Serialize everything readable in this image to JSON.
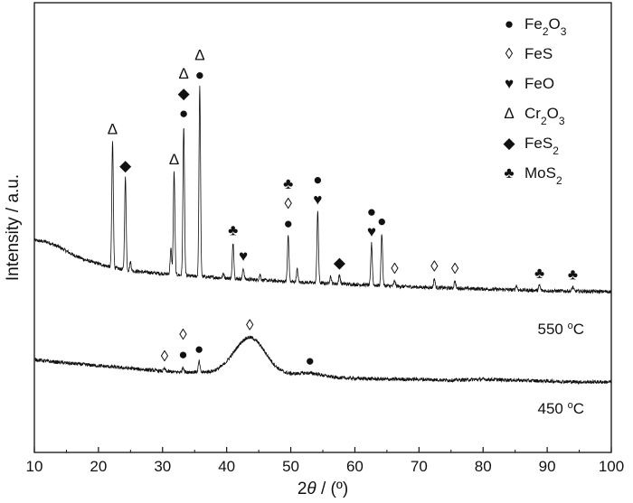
{
  "chart_data": {
    "type": "line",
    "xlabel": "2θ / (º)",
    "ylabel": "Intensity / a.u.",
    "xlim": [
      10,
      100
    ],
    "xticks": [
      10,
      20,
      30,
      40,
      50,
      60,
      70,
      80,
      90,
      100
    ],
    "y_ticks_shown": false,
    "grid": false,
    "legend_position": "top-right",
    "legend": [
      {
        "symbol": "●",
        "label": "Fe",
        "sub1": "2",
        "mid": "O",
        "sub2": "3"
      },
      {
        "symbol": "◊",
        "label": "FeS",
        "sub1": "",
        "mid": "",
        "sub2": ""
      },
      {
        "symbol": "♥",
        "label": "FeO",
        "sub1": "",
        "mid": "",
        "sub2": ""
      },
      {
        "symbol": "Δ",
        "label": "Cr",
        "sub1": "2",
        "mid": "O",
        "sub2": "3"
      },
      {
        "symbol": "◆",
        "label": "FeS",
        "sub1": "2",
        "mid": "",
        "sub2": ""
      },
      {
        "symbol": "♣",
        "label": "MoS",
        "sub1": "2",
        "mid": "",
        "sub2": ""
      }
    ],
    "series": [
      {
        "label_main": "550 ",
        "label_sup": "o",
        "label_unit": "C",
        "background": [
          [
            10,
            64
          ],
          [
            12,
            62
          ],
          [
            14,
            56
          ],
          [
            16,
            48
          ],
          [
            18,
            42
          ],
          [
            20,
            38
          ],
          [
            22,
            34
          ],
          [
            25,
            30
          ],
          [
            30,
            27
          ],
          [
            35,
            24
          ],
          [
            40,
            22
          ],
          [
            45,
            20
          ],
          [
            50,
            18
          ],
          [
            60,
            15
          ],
          [
            70,
            12
          ],
          [
            80,
            10
          ],
          [
            90,
            8
          ],
          [
            100,
            7
          ]
        ],
        "peaks": [
          {
            "x": 22.2,
            "h": 140
          },
          {
            "x": 24.2,
            "h": 102
          },
          {
            "x": 25.0,
            "h": 10
          },
          {
            "x": 31.3,
            "h": 28
          },
          {
            "x": 31.8,
            "h": 114
          },
          {
            "x": 33.3,
            "h": 166
          },
          {
            "x": 35.8,
            "h": 210
          },
          {
            "x": 39.5,
            "h": 5
          },
          {
            "x": 41.0,
            "h": 40
          },
          {
            "x": 42.6,
            "h": 12
          },
          {
            "x": 45.2,
            "h": 6
          },
          {
            "x": 49.6,
            "h": 51
          },
          {
            "x": 51.0,
            "h": 14
          },
          {
            "x": 54.2,
            "h": 79
          },
          {
            "x": 56.2,
            "h": 8
          },
          {
            "x": 57.6,
            "h": 10
          },
          {
            "x": 62.6,
            "h": 46
          },
          {
            "x": 64.2,
            "h": 58
          },
          {
            "x": 66.2,
            "h": 6
          },
          {
            "x": 72.4,
            "h": 10
          },
          {
            "x": 75.6,
            "h": 8
          },
          {
            "x": 85.2,
            "h": 5
          },
          {
            "x": 88.8,
            "h": 6
          },
          {
            "x": 94.0,
            "h": 5
          }
        ],
        "broad_peaks": []
      },
      {
        "label_main": "450 ",
        "label_sup": "o",
        "label_unit": "C",
        "background": [
          [
            10,
            22
          ],
          [
            12,
            20
          ],
          [
            15,
            18
          ],
          [
            20,
            15
          ],
          [
            25,
            12
          ],
          [
            30,
            9
          ],
          [
            32,
            8
          ],
          [
            35,
            8
          ],
          [
            38,
            7
          ],
          [
            40,
            7
          ],
          [
            45,
            6
          ],
          [
            50,
            4
          ],
          [
            55,
            2
          ],
          [
            60,
            1
          ],
          [
            65,
            0
          ],
          [
            70,
            0
          ],
          [
            75,
            -1
          ],
          [
            80,
            0
          ],
          [
            85,
            -1
          ],
          [
            90,
            -2
          ],
          [
            95,
            -3
          ],
          [
            100,
            -3
          ]
        ],
        "peaks": [
          {
            "x": 33.2,
            "h": 6
          },
          {
            "x": 35.7,
            "h": 12
          },
          {
            "x": 30.3,
            "h": 3
          }
        ],
        "broad_peaks": [
          {
            "x": 43.6,
            "h": 40,
            "w": 2.4
          },
          {
            "x": 53.0,
            "h": 4,
            "w": 2.0
          }
        ]
      }
    ],
    "annotations": [
      {
        "x": 22.2,
        "y": 140,
        "series": 0,
        "symbols": [
          "Δ"
        ]
      },
      {
        "x": 24.2,
        "y": 102,
        "series": 0,
        "symbols": [
          "◆"
        ]
      },
      {
        "x": 31.8,
        "y": 114,
        "series": 0,
        "symbols": [
          "Δ"
        ]
      },
      {
        "x": 33.3,
        "y": 166,
        "series": 0,
        "symbols": [
          "●",
          "◆",
          "Δ"
        ]
      },
      {
        "x": 35.8,
        "y": 210,
        "series": 0,
        "symbols": [
          "●",
          "Δ"
        ]
      },
      {
        "x": 41.0,
        "y": 40,
        "series": 0,
        "symbols": [
          "♣"
        ]
      },
      {
        "x": 42.6,
        "y": 12,
        "series": 0,
        "symbols": [
          "♥"
        ]
      },
      {
        "x": 49.6,
        "y": 51,
        "series": 0,
        "symbols": [
          "●",
          "◊",
          "♣"
        ]
      },
      {
        "x": 54.2,
        "y": 79,
        "series": 0,
        "symbols": [
          "♥",
          "●"
        ]
      },
      {
        "x": 57.6,
        "y": 10,
        "series": 0,
        "symbols": [
          "◆"
        ]
      },
      {
        "x": 62.6,
        "y": 46,
        "series": 0,
        "symbols": [
          "♥",
          "●"
        ]
      },
      {
        "x": 64.2,
        "y": 58,
        "series": 0,
        "symbols": [
          "●"
        ]
      },
      {
        "x": 66.2,
        "y": 6,
        "series": 0,
        "symbols": [
          "◊"
        ]
      },
      {
        "x": 72.4,
        "y": 10,
        "series": 0,
        "symbols": [
          "◊"
        ]
      },
      {
        "x": 75.6,
        "y": 8,
        "series": 0,
        "symbols": [
          "◊"
        ]
      },
      {
        "x": 88.8,
        "y": 6,
        "series": 0,
        "symbols": [
          "♣"
        ]
      },
      {
        "x": 94.0,
        "y": 5,
        "series": 0,
        "symbols": [
          "♣"
        ]
      },
      {
        "x": 30.3,
        "y": 3,
        "series": 1,
        "symbols": [
          "◊"
        ]
      },
      {
        "x": 33.2,
        "y": 6,
        "series": 1,
        "symbols": [
          "●",
          "◊"
        ]
      },
      {
        "x": 35.7,
        "y": 12,
        "series": 1,
        "symbols": [
          "●"
        ]
      },
      {
        "x": 43.6,
        "y": 40,
        "series": 1,
        "symbols": [
          "◊"
        ]
      },
      {
        "x": 53.0,
        "y": 4,
        "series": 1,
        "symbols": [
          "●"
        ]
      }
    ]
  }
}
